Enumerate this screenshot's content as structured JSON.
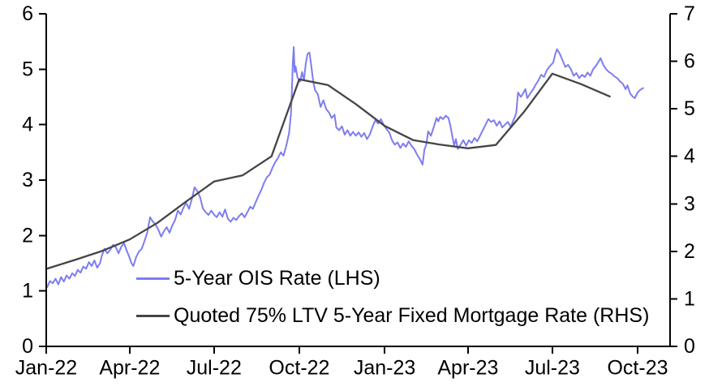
{
  "chart_data": {
    "type": "line",
    "title": "",
    "x_unit": "days since 2022-01-01",
    "x_domain_days": [
      0,
      673
    ],
    "grid": false,
    "legend_position": "inside-lower-left",
    "x_ticks": [
      {
        "day": 0,
        "label": "Jan-22"
      },
      {
        "day": 90,
        "label": "Apr-22"
      },
      {
        "day": 181,
        "label": "Jul-22"
      },
      {
        "day": 273,
        "label": "Oct-22"
      },
      {
        "day": 365,
        "label": "Jan-23"
      },
      {
        "day": 455,
        "label": "Apr-23"
      },
      {
        "day": 546,
        "label": "Jul-23"
      },
      {
        "day": 638,
        "label": "Oct-23"
      }
    ],
    "left_axis": {
      "min": 0,
      "max": 6,
      "step": 1,
      "tick_labels": [
        "0",
        "1",
        "2",
        "3",
        "4",
        "5",
        "6"
      ]
    },
    "right_axis": {
      "min": 0,
      "max": 7,
      "step": 1,
      "tick_labels": [
        "0",
        "1",
        "2",
        "3",
        "4",
        "5",
        "6",
        "7"
      ]
    },
    "series": [
      {
        "name": "5-Year OIS Rate (LHS)",
        "axis": "left",
        "color": "#7d7df1",
        "line_width": 2,
        "style": "jagged-daily",
        "points": [
          [
            1,
            1.07
          ],
          [
            4,
            1.18
          ],
          [
            7,
            1.14
          ],
          [
            10,
            1.22
          ],
          [
            13,
            1.12
          ],
          [
            16,
            1.25
          ],
          [
            19,
            1.17
          ],
          [
            22,
            1.28
          ],
          [
            25,
            1.22
          ],
          [
            28,
            1.32
          ],
          [
            31,
            1.27
          ],
          [
            34,
            1.38
          ],
          [
            37,
            1.33
          ],
          [
            40,
            1.44
          ],
          [
            43,
            1.4
          ],
          [
            46,
            1.52
          ],
          [
            49,
            1.45
          ],
          [
            52,
            1.55
          ],
          [
            55,
            1.42
          ],
          [
            58,
            1.5
          ],
          [
            60,
            1.64
          ],
          [
            63,
            1.76
          ],
          [
            66,
            1.68
          ],
          [
            69,
            1.74
          ],
          [
            72,
            1.83
          ],
          [
            75,
            1.79
          ],
          [
            78,
            1.68
          ],
          [
            81,
            1.8
          ],
          [
            84,
            1.86
          ],
          [
            87,
            1.72
          ],
          [
            89,
            1.64
          ],
          [
            92,
            1.5
          ],
          [
            94,
            1.45
          ],
          [
            97,
            1.61
          ],
          [
            100,
            1.71
          ],
          [
            103,
            1.76
          ],
          [
            106,
            1.9
          ],
          [
            109,
            2.05
          ],
          [
            112,
            2.33
          ],
          [
            115,
            2.25
          ],
          [
            118,
            2.2
          ],
          [
            121,
            2.1
          ],
          [
            124,
            1.98
          ],
          [
            127,
            2.08
          ],
          [
            130,
            2.15
          ],
          [
            133,
            2.05
          ],
          [
            136,
            2.18
          ],
          [
            139,
            2.28
          ],
          [
            142,
            2.45
          ],
          [
            145,
            2.38
          ],
          [
            148,
            2.5
          ],
          [
            151,
            2.59
          ],
          [
            154,
            2.48
          ],
          [
            157,
            2.65
          ],
          [
            160,
            2.87
          ],
          [
            163,
            2.8
          ],
          [
            166,
            2.69
          ],
          [
            169,
            2.49
          ],
          [
            172,
            2.42
          ],
          [
            175,
            2.37
          ],
          [
            178,
            2.45
          ],
          [
            181,
            2.38
          ],
          [
            184,
            2.33
          ],
          [
            187,
            2.42
          ],
          [
            190,
            2.34
          ],
          [
            193,
            2.47
          ],
          [
            196,
            2.3
          ],
          [
            199,
            2.25
          ],
          [
            202,
            2.32
          ],
          [
            205,
            2.28
          ],
          [
            208,
            2.35
          ],
          [
            211,
            2.4
          ],
          [
            214,
            2.33
          ],
          [
            217,
            2.42
          ],
          [
            220,
            2.52
          ],
          [
            223,
            2.48
          ],
          [
            226,
            2.6
          ],
          [
            229,
            2.72
          ],
          [
            232,
            2.82
          ],
          [
            235,
            2.95
          ],
          [
            238,
            3.05
          ],
          [
            241,
            3.1
          ],
          [
            244,
            3.22
          ],
          [
            247,
            3.32
          ],
          [
            250,
            3.4
          ],
          [
            253,
            3.5
          ],
          [
            256,
            3.44
          ],
          [
            259,
            3.62
          ],
          [
            262,
            3.85
          ],
          [
            264,
            4.2
          ],
          [
            265,
            4.6
          ],
          [
            266,
            5.1
          ],
          [
            267,
            5.4
          ],
          [
            268,
            4.95
          ],
          [
            269,
            5.05
          ],
          [
            271,
            4.85
          ],
          [
            274,
            4.78
          ],
          [
            276,
            4.95
          ],
          [
            278,
            4.8
          ],
          [
            280,
            5.1
          ],
          [
            282,
            5.28
          ],
          [
            284,
            5.3
          ],
          [
            286,
            5.05
          ],
          [
            288,
            4.78
          ],
          [
            290,
            4.62
          ],
          [
            293,
            4.55
          ],
          [
            296,
            4.32
          ],
          [
            299,
            4.44
          ],
          [
            302,
            4.28
          ],
          [
            305,
            4.22
          ],
          [
            308,
            4.12
          ],
          [
            311,
            4.18
          ],
          [
            313,
            3.95
          ],
          [
            316,
            3.9
          ],
          [
            319,
            3.97
          ],
          [
            322,
            3.82
          ],
          [
            325,
            3.9
          ],
          [
            328,
            3.8
          ],
          [
            331,
            3.87
          ],
          [
            334,
            3.8
          ],
          [
            337,
            3.86
          ],
          [
            340,
            3.78
          ],
          [
            343,
            3.85
          ],
          [
            346,
            3.74
          ],
          [
            349,
            3.82
          ],
          [
            352,
            3.96
          ],
          [
            355,
            4.08
          ],
          [
            358,
            4.02
          ],
          [
            361,
            4.1
          ],
          [
            364,
            4.0
          ],
          [
            367,
            3.92
          ],
          [
            370,
            3.86
          ],
          [
            373,
            3.72
          ],
          [
            376,
            3.64
          ],
          [
            379,
            3.68
          ],
          [
            382,
            3.58
          ],
          [
            385,
            3.66
          ],
          [
            388,
            3.6
          ],
          [
            391,
            3.7
          ],
          [
            394,
            3.62
          ],
          [
            397,
            3.56
          ],
          [
            400,
            3.46
          ],
          [
            403,
            3.38
          ],
          [
            406,
            3.28
          ],
          [
            408,
            3.55
          ],
          [
            410,
            3.64
          ],
          [
            412,
            3.88
          ],
          [
            415,
            3.8
          ],
          [
            418,
            3.95
          ],
          [
            421,
            4.12
          ],
          [
            423,
            4.06
          ],
          [
            425,
            4.14
          ],
          [
            428,
            4.1
          ],
          [
            431,
            4.16
          ],
          [
            434,
            4.12
          ],
          [
            436,
            3.98
          ],
          [
            438,
            3.8
          ],
          [
            440,
            3.62
          ],
          [
            442,
            3.74
          ],
          [
            444,
            3.56
          ],
          [
            447,
            3.64
          ],
          [
            450,
            3.72
          ],
          [
            453,
            3.62
          ],
          [
            456,
            3.72
          ],
          [
            459,
            3.67
          ],
          [
            462,
            3.76
          ],
          [
            465,
            3.7
          ],
          [
            468,
            3.8
          ],
          [
            471,
            3.9
          ],
          [
            474,
            4.0
          ],
          [
            477,
            4.1
          ],
          [
            480,
            4.05
          ],
          [
            483,
            4.08
          ],
          [
            486,
            3.98
          ],
          [
            489,
            4.06
          ],
          [
            492,
            3.95
          ],
          [
            495,
            4.0
          ],
          [
            498,
            4.05
          ],
          [
            501,
            3.96
          ],
          [
            504,
            4.08
          ],
          [
            507,
            4.2
          ],
          [
            509,
            4.58
          ],
          [
            512,
            4.5
          ],
          [
            515,
            4.58
          ],
          [
            517,
            4.64
          ],
          [
            519,
            4.48
          ],
          [
            522,
            4.56
          ],
          [
            525,
            4.63
          ],
          [
            528,
            4.72
          ],
          [
            531,
            4.8
          ],
          [
            534,
            4.9
          ],
          [
            537,
            4.86
          ],
          [
            540,
            4.98
          ],
          [
            543,
            5.05
          ],
          [
            547,
            5.12
          ],
          [
            549,
            5.26
          ],
          [
            551,
            5.36
          ],
          [
            554,
            5.28
          ],
          [
            557,
            5.16
          ],
          [
            560,
            5.04
          ],
          [
            563,
            5.08
          ],
          [
            566,
            5.0
          ],
          [
            569,
            4.88
          ],
          [
            572,
            4.93
          ],
          [
            575,
            4.84
          ],
          [
            578,
            4.9
          ],
          [
            581,
            4.86
          ],
          [
            584,
            4.94
          ],
          [
            587,
            4.88
          ],
          [
            590,
            5.0
          ],
          [
            593,
            5.06
          ],
          [
            596,
            5.14
          ],
          [
            598,
            5.2
          ],
          [
            601,
            5.08
          ],
          [
            604,
            5.0
          ],
          [
            607,
            4.95
          ],
          [
            610,
            4.92
          ],
          [
            613,
            4.87
          ],
          [
            616,
            4.84
          ],
          [
            619,
            4.78
          ],
          [
            622,
            4.74
          ],
          [
            625,
            4.64
          ],
          [
            627,
            4.71
          ],
          [
            630,
            4.56
          ],
          [
            633,
            4.5
          ],
          [
            635,
            4.48
          ],
          [
            638,
            4.58
          ],
          [
            641,
            4.63
          ],
          [
            644,
            4.66
          ]
        ]
      },
      {
        "name": "Quoted 75% LTV 5-Year Fixed Mortgage Rate (RHS)",
        "axis": "right",
        "color": "#454545",
        "line_width": 2.3,
        "style": "smooth-monthly",
        "points": [
          [
            0,
            1.63
          ],
          [
            31,
            1.82
          ],
          [
            59,
            2.0
          ],
          [
            90,
            2.25
          ],
          [
            120,
            2.6
          ],
          [
            151,
            3.05
          ],
          [
            181,
            3.47
          ],
          [
            212,
            3.6
          ],
          [
            243,
            4.0
          ],
          [
            273,
            5.62
          ],
          [
            304,
            5.5
          ],
          [
            334,
            5.1
          ],
          [
            365,
            4.64
          ],
          [
            396,
            4.34
          ],
          [
            424,
            4.25
          ],
          [
            455,
            4.17
          ],
          [
            485,
            4.24
          ],
          [
            516,
            4.95
          ],
          [
            546,
            5.74
          ],
          [
            577,
            5.52
          ],
          [
            608,
            5.26
          ]
        ]
      }
    ]
  }
}
